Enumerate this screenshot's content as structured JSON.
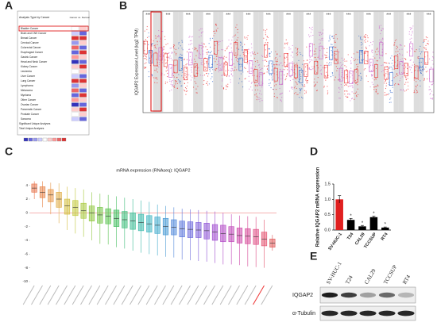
{
  "panel_labels": [
    "A",
    "B",
    "C",
    "D",
    "E"
  ],
  "panel_a": {
    "header": "Analysis Type by Cancer",
    "column": "Cancer vs. Normal",
    "rows": [
      "Bladder Cancer",
      "Brain and CNS Cancer",
      "Breast Cancer",
      "Cervical Cancer",
      "Colorectal Cancer",
      "Esophageal Cancer",
      "Gastric Cancer",
      "Head and Neck Cancer",
      "Kidney Cancer",
      "Leukemia",
      "Liver Cancer",
      "Lung Cancer",
      "Lymphoma",
      "Melanoma",
      "Myeloma",
      "Other Cancer",
      "Ovarian Cancer",
      "Pancreatic Cancer",
      "Prostate Cancer",
      "Sarcoma"
    ],
    "footer": [
      "Significant Unique Analyses",
      "Total Unique Analyses"
    ]
  },
  "panel_b": {
    "ylabel": "IQGAP2 Expression Level (log2 TPM)",
    "significance": "***"
  },
  "panel_c": {
    "title": "mRNA expression (RNAseq): IQGAP2",
    "ylim": [
      -10,
      5
    ],
    "yticks": [
      4,
      2,
      0,
      -2,
      -4,
      -6,
      -8,
      -10
    ],
    "medians": [
      3.6,
      3.0,
      2.6,
      2.0,
      1.0,
      0.8,
      0.3,
      0.0,
      -0.3,
      -0.5,
      -0.8,
      -1.0,
      -1.2,
      -1.4,
      -1.6,
      -1.8,
      -2.0,
      -2.1,
      -2.3,
      -2.4,
      -2.5,
      -2.6,
      -2.8,
      -3.0,
      -3.1,
      -3.3,
      -3.4,
      -3.5,
      -3.8,
      -4.4
    ],
    "q1": [
      3.0,
      2.2,
      1.6,
      0.8,
      -0.2,
      -0.4,
      -0.8,
      -1.2,
      -1.5,
      -1.6,
      -2.0,
      -2.2,
      -2.4,
      -2.6,
      -2.8,
      -3.0,
      -3.2,
      -3.2,
      -3.5,
      -3.6,
      -3.6,
      -3.8,
      -4.0,
      -4.2,
      -4.2,
      -4.4,
      -4.5,
      -4.6,
      -4.8,
      -5.0
    ],
    "q3": [
      4.2,
      3.8,
      3.4,
      3.0,
      2.0,
      1.8,
      1.4,
      1.0,
      0.8,
      0.6,
      0.4,
      0.2,
      0.0,
      -0.2,
      -0.4,
      -0.6,
      -0.8,
      -1.0,
      -1.2,
      -1.3,
      -1.4,
      -1.5,
      -1.7,
      -1.8,
      -2.0,
      -2.2,
      -2.3,
      -2.4,
      -2.8,
      -3.8
    ],
    "low": [
      2.0,
      0.8,
      -0.2,
      -1.5,
      -2.5,
      -3.0,
      -3.5,
      -4.0,
      -4.5,
      -4.6,
      -5.0,
      -5.2,
      -5.5,
      -5.8,
      -6.0,
      -6.2,
      -6.4,
      -6.5,
      -6.8,
      -6.9,
      -7.0,
      -7.1,
      -7.3,
      -7.5,
      -7.5,
      -7.6,
      -7.8,
      -7.9,
      -8.0,
      -5.5
    ],
    "high": [
      4.6,
      4.6,
      4.4,
      4.3,
      3.8,
      3.6,
      3.4,
      3.0,
      2.8,
      2.6,
      2.4,
      2.2,
      2.0,
      1.8,
      1.6,
      1.2,
      1.0,
      0.8,
      0.6,
      0.5,
      0.4,
      0.3,
      0.2,
      0.0,
      -0.2,
      -0.4,
      -0.5,
      -0.6,
      -1.0,
      -3.2
    ],
    "colors": [
      "#e8724a",
      "#e8854a",
      "#e8984a",
      "#e0ad45",
      "#d4bf3f",
      "#c2c93c",
      "#a8c93c",
      "#8fc73f",
      "#74c445",
      "#5ac24f",
      "#45bf62",
      "#3dbd7a",
      "#3bbb93",
      "#3bb9ab",
      "#3cb5c0",
      "#3fa9cc",
      "#4699d4",
      "#5088da",
      "#5c77dc",
      "#6b68dc",
      "#7c5cda",
      "#8e53d6",
      "#a04ccf",
      "#b148c5",
      "#c046b8",
      "#cc46a8",
      "#d64897",
      "#de4c84",
      "#e3526f",
      "#e05a5a"
    ]
  },
  "chart_data": {
    "type": "bar",
    "ylabel": "Relative IQGAP2 mRNA expression",
    "categories": [
      "SV-HUC-1",
      "T24",
      "CAL29",
      "TCCSUP",
      "RT4"
    ],
    "values": [
      1.0,
      0.33,
      0.12,
      0.42,
      0.08
    ],
    "errors": [
      0.12,
      0.05,
      0.03,
      0.03,
      0.02
    ],
    "colors": [
      "#e02020",
      "#000000",
      "#000000",
      "#000000",
      "#000000"
    ],
    "significance": [
      null,
      "*",
      "*",
      "*",
      "*"
    ],
    "ylim": [
      0,
      1.5
    ],
    "yticks": [
      {
        "value": 0,
        "label": "0.0"
      },
      {
        "value": 0.5,
        "label": "0.5"
      },
      {
        "value": 1,
        "label": "1.0"
      },
      {
        "value": 1.5,
        "label": "1.5"
      }
    ]
  },
  "panel_e": {
    "lanes": [
      "SV-HUC-1",
      "T24",
      "CAL29",
      "TCCSUP",
      "RT4"
    ],
    "rows": [
      "IQGAP2",
      "α-Tubulin"
    ]
  }
}
